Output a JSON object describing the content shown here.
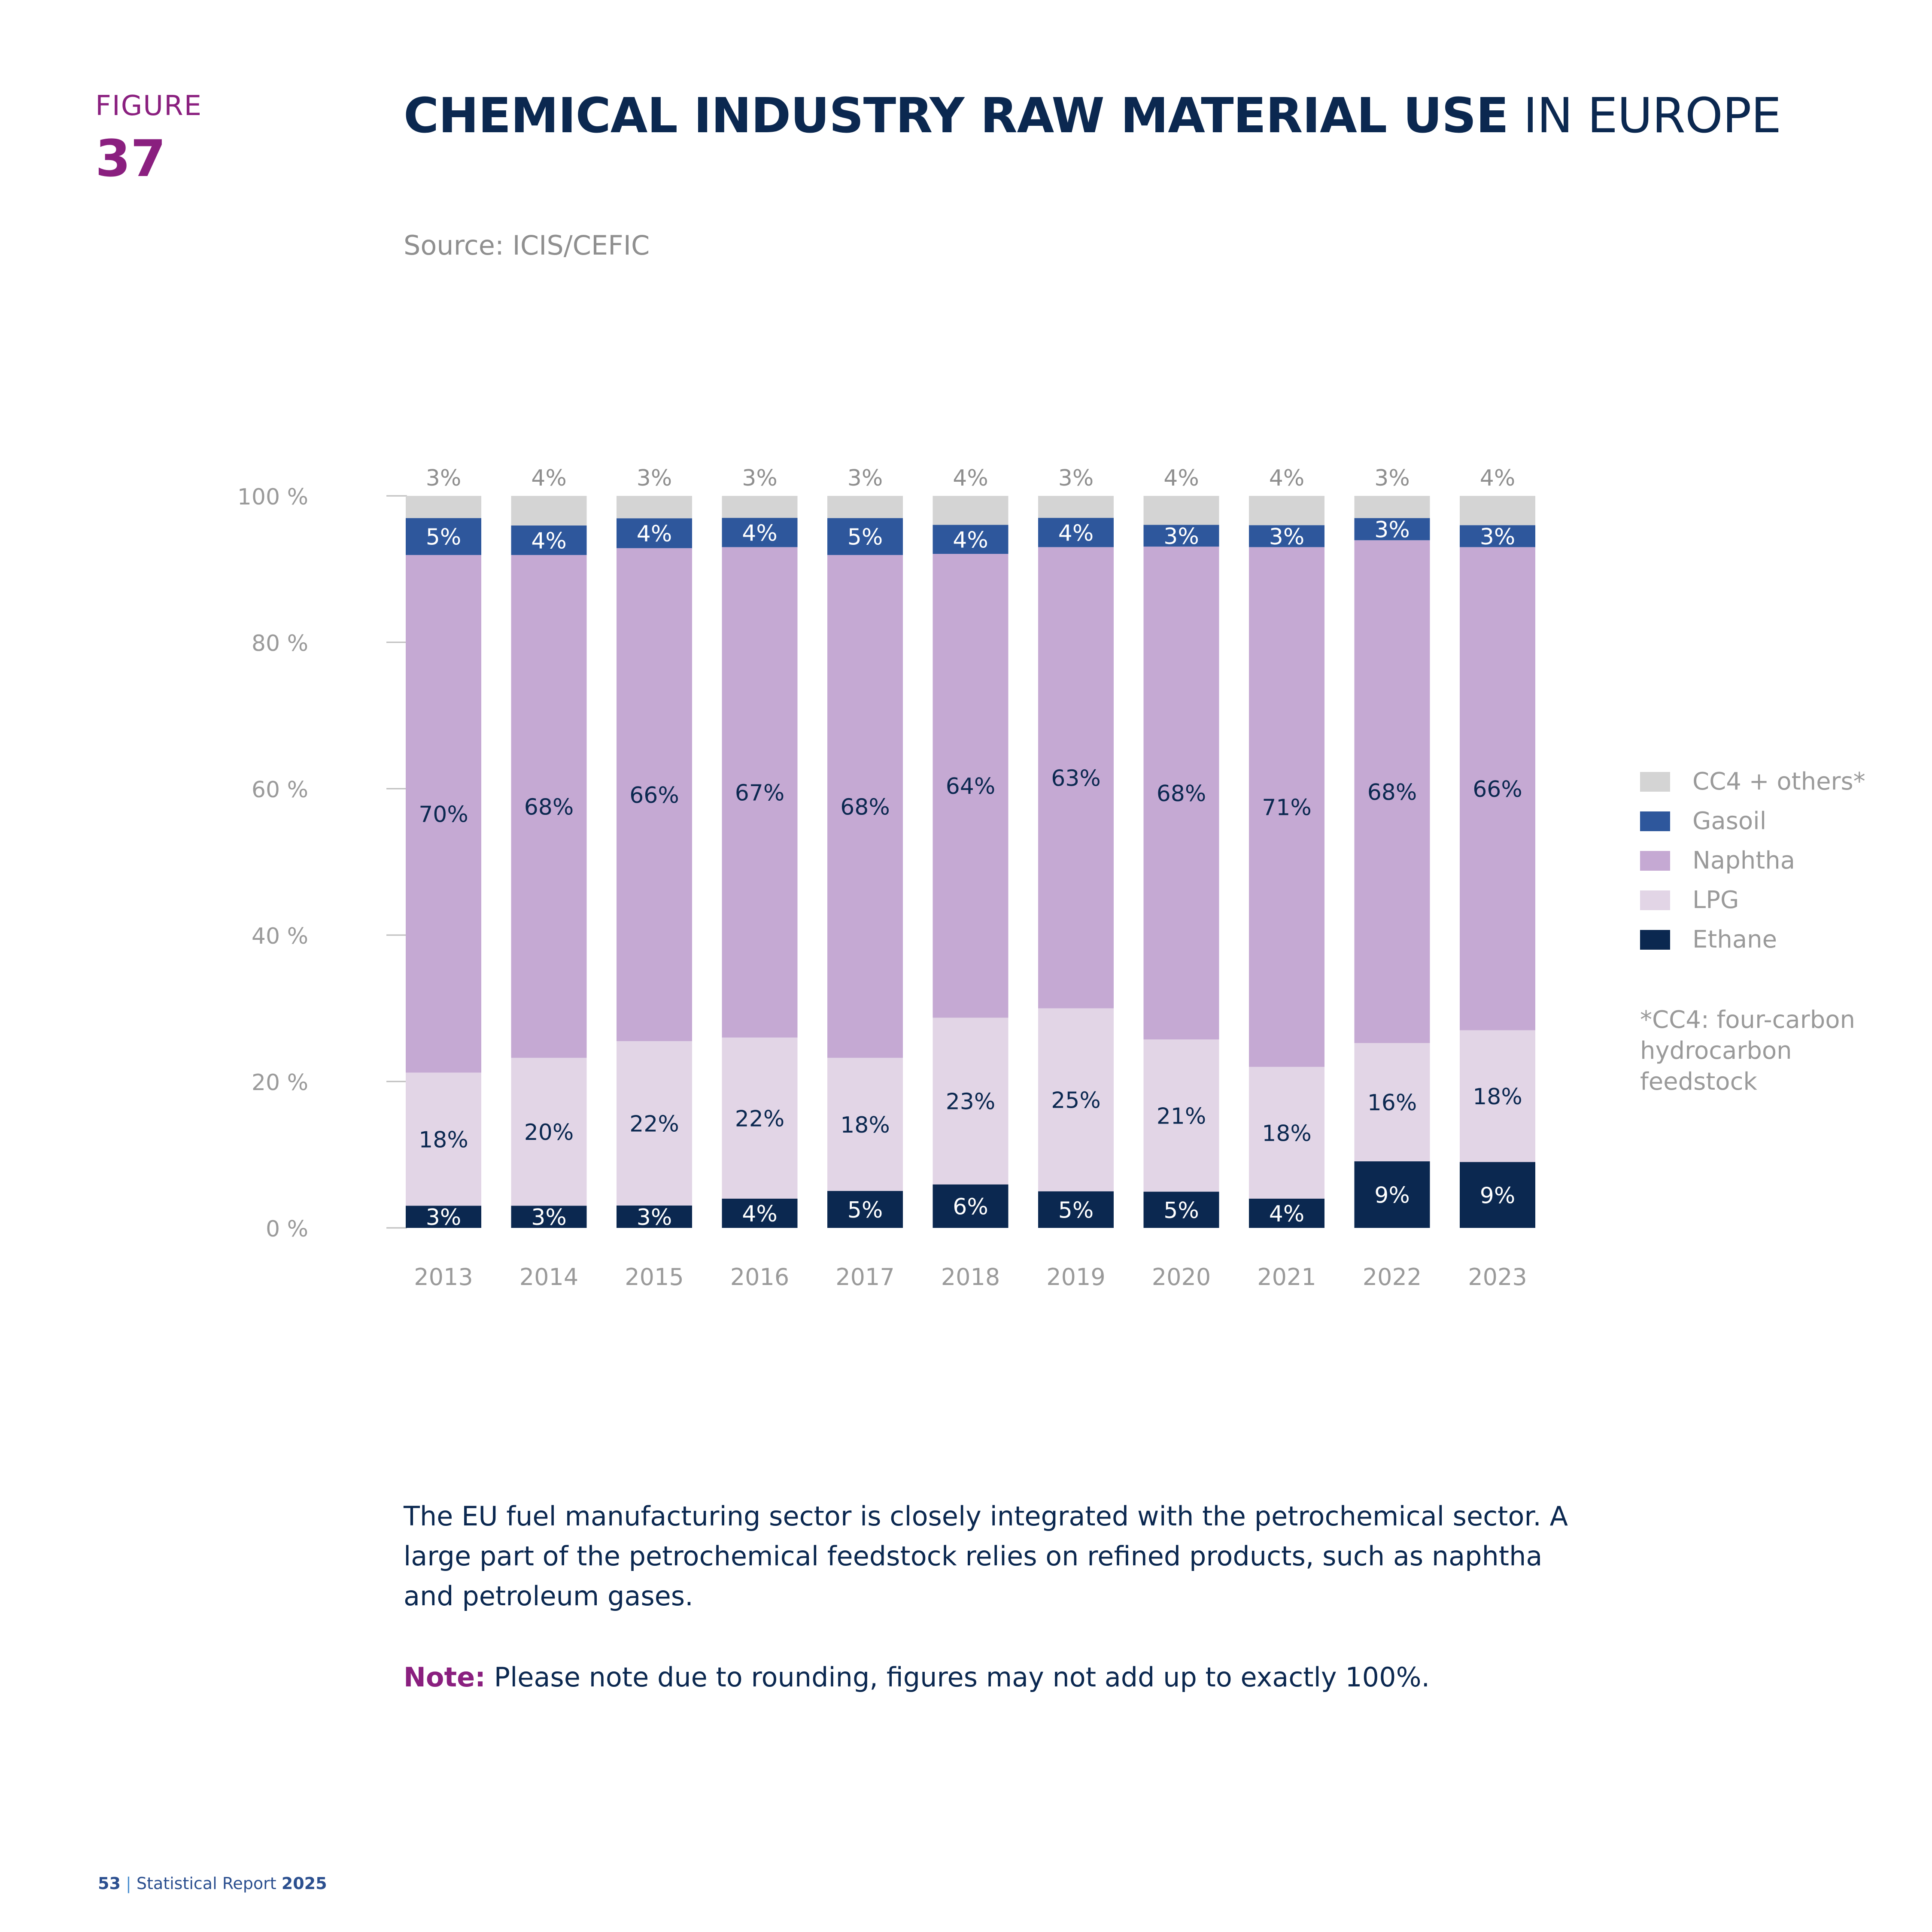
{
  "figure": {
    "label": "FIGURE",
    "number": "37"
  },
  "title": {
    "bold": "CHEMICAL INDUSTRY RAW MATERIAL USE",
    "light": "IN EUROPE"
  },
  "source": "Source: ICIS/CEFIC",
  "legend": [
    {
      "label": "CC4 + others*",
      "color": "#d4d4d4"
    },
    {
      "label": "Gasoil",
      "color": "#2e579c"
    },
    {
      "label": "Naphtha",
      "color": "#c5a9d3"
    },
    {
      "label": "LPG",
      "color": "#e2d5e6"
    },
    {
      "label": "Ethane",
      "color": "#0b2850"
    }
  ],
  "footnote": "*CC4: four-carbon hydrocarbon feedstock",
  "body_text": "The EU fuel manufacturing sector is closely integrated with the petrochemical sector. A large part of the petrochemical feedstock relies on refined products, such as naphtha and petroleum gases.",
  "note": {
    "label": "Note:",
    "text": " Please note due to rounding, figures may not add up to exactly 100%."
  },
  "footer": {
    "page": "53",
    "separator": "|",
    "report": "Statistical Report",
    "year": "2025"
  },
  "chart_data": {
    "type": "bar",
    "stacked": true,
    "categories": [
      "2013",
      "2014",
      "2015",
      "2016",
      "2017",
      "2018",
      "2019",
      "2020",
      "2021",
      "2022",
      "2023"
    ],
    "series": [
      {
        "name": "Ethane",
        "color": "#0b2850",
        "label_color": "#ffffff",
        "values": [
          3,
          3,
          3,
          4,
          5,
          6,
          5,
          5,
          4,
          9,
          9
        ],
        "labels": [
          "3%",
          "3%",
          "3%",
          "4%",
          "5%",
          "6%",
          "5%",
          "5%",
          "4%",
          "9%",
          "9%"
        ]
      },
      {
        "name": "LPG",
        "color": "#e2d5e6",
        "label_color": "#0b2850",
        "values": [
          18,
          20,
          22,
          22,
          18,
          23,
          25,
          21,
          18,
          16,
          18
        ],
        "labels": [
          "18%",
          "20%",
          "22%",
          "22%",
          "18%",
          "23%",
          "25%",
          "21%",
          "18%",
          "16%",
          "18%"
        ]
      },
      {
        "name": "Naphtha",
        "color": "#c5a9d3",
        "label_color": "#0b2850",
        "values": [
          70,
          68,
          66,
          67,
          68,
          64,
          63,
          68,
          71,
          68,
          66
        ],
        "labels": [
          "70%",
          "68%",
          "66%",
          "67%",
          "68%",
          "64%",
          "63%",
          "68%",
          "71%",
          "68%",
          "66%"
        ]
      },
      {
        "name": "Gasoil",
        "color": "#2e579c",
        "label_color": "#ffffff",
        "values": [
          5,
          4,
          4,
          4,
          5,
          4,
          4,
          3,
          3,
          3,
          3
        ],
        "labels": [
          "5%",
          "4%",
          "4%",
          "4%",
          "5%",
          "4%",
          "4%",
          "3%",
          "3%",
          "3%",
          "3%"
        ]
      },
      {
        "name": "CC4 + others*",
        "color": "#d4d4d4",
        "label_color": "#8f8f8f",
        "values": [
          3,
          4,
          3,
          3,
          3,
          4,
          3,
          4,
          4,
          3,
          4
        ],
        "labels": [
          "3%",
          "4%",
          "3%",
          "3%",
          "3%",
          "4%",
          "3%",
          "4%",
          "4%",
          "3%",
          "4%"
        ]
      }
    ],
    "y_ticks": [
      "0 %",
      "20 %",
      "40 %",
      "60 %",
      "80 %",
      "100 %"
    ],
    "ylim": [
      0,
      100
    ],
    "grid": false,
    "legend_position": "right"
  }
}
